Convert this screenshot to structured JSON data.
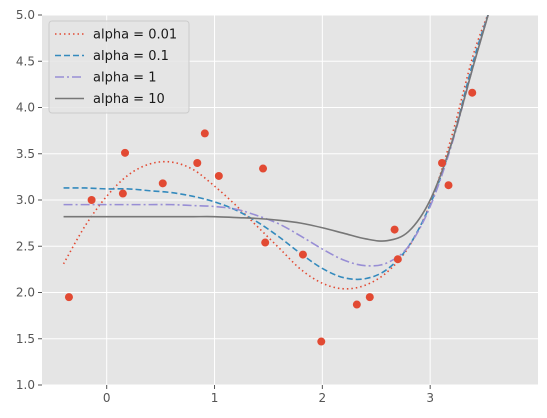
{
  "chart_data": {
    "type": "line",
    "title": "",
    "xlabel": "",
    "ylabel": "",
    "xlim": [
      -0.6,
      4.0
    ],
    "ylim": [
      1.0,
      5.0
    ],
    "xticks": [
      0,
      1,
      2,
      3
    ],
    "yticks": [
      1.0,
      1.5,
      2.0,
      2.5,
      3.0,
      3.5,
      4.0,
      4.5,
      5.0
    ],
    "xtick_labels": [
      "0",
      "1",
      "2",
      "3"
    ],
    "ytick_labels": [
      "1.0",
      "1.5",
      "2.0",
      "2.5",
      "3.0",
      "3.5",
      "4.0",
      "4.5",
      "5.0"
    ],
    "grid": true,
    "legend_position": "top-left",
    "colors": {
      "background": "#e5e5e5",
      "grid": "#ffffff",
      "points": "#e24a33"
    },
    "points": {
      "x": [
        -0.35,
        -0.14,
        0.15,
        0.17,
        0.52,
        0.84,
        0.91,
        1.04,
        1.45,
        1.47,
        1.82,
        1.99,
        2.32,
        2.44,
        2.67,
        2.7,
        3.11,
        3.17,
        3.39
      ],
      "y": [
        1.95,
        3.0,
        3.07,
        3.51,
        3.18,
        3.4,
        3.72,
        3.26,
        3.34,
        2.54,
        2.41,
        1.47,
        1.87,
        1.95,
        2.68,
        2.36,
        3.4,
        3.16,
        4.16
      ]
    },
    "series": [
      {
        "name": "alpha = 0.01",
        "color": "#e24a33",
        "dash": "dotted",
        "x": [
          -0.4,
          -0.2,
          0.0,
          0.2,
          0.4,
          0.6,
          0.8,
          1.0,
          1.2,
          1.4,
          1.6,
          1.8,
          2.0,
          2.2,
          2.4,
          2.6,
          2.8,
          3.0,
          3.2,
          3.4,
          3.55
        ],
        "y": [
          2.31,
          2.72,
          3.04,
          3.27,
          3.39,
          3.41,
          3.33,
          3.15,
          2.94,
          2.71,
          2.48,
          2.25,
          2.1,
          2.04,
          2.08,
          2.22,
          2.49,
          2.96,
          3.69,
          4.57,
          5.05
        ]
      },
      {
        "name": "alpha = 0.1",
        "color": "#348abd",
        "dash": "dashed",
        "x": [
          -0.4,
          -0.2,
          0.0,
          0.2,
          0.4,
          0.6,
          0.8,
          1.0,
          1.2,
          1.4,
          1.6,
          1.8,
          2.0,
          2.2,
          2.4,
          2.6,
          2.8,
          3.0,
          3.2,
          3.4,
          3.55
        ],
        "y": [
          3.13,
          3.13,
          3.12,
          3.12,
          3.1,
          3.08,
          3.04,
          2.98,
          2.89,
          2.76,
          2.6,
          2.42,
          2.26,
          2.16,
          2.15,
          2.25,
          2.5,
          2.95,
          3.62,
          4.5,
          5.05
        ]
      },
      {
        "name": "alpha = 1",
        "color": "#988ed5",
        "dash": "dashdot",
        "x": [
          -0.4,
          -0.2,
          0.0,
          0.2,
          0.4,
          0.6,
          0.8,
          1.0,
          1.2,
          1.4,
          1.6,
          1.8,
          2.0,
          2.2,
          2.4,
          2.6,
          2.8,
          3.0,
          3.2,
          3.4,
          3.55
        ],
        "y": [
          2.95,
          2.95,
          2.95,
          2.95,
          2.95,
          2.95,
          2.94,
          2.93,
          2.9,
          2.83,
          2.74,
          2.61,
          2.47,
          2.35,
          2.29,
          2.32,
          2.5,
          2.93,
          3.6,
          4.45,
          5.05
        ]
      },
      {
        "name": "alpha = 10",
        "color": "#777777",
        "dash": "solid",
        "x": [
          -0.4,
          -0.2,
          0.0,
          0.2,
          0.4,
          0.6,
          0.8,
          1.0,
          1.2,
          1.4,
          1.6,
          1.8,
          2.0,
          2.2,
          2.4,
          2.6,
          2.8,
          3.0,
          3.2,
          3.4,
          3.55
        ],
        "y": [
          2.82,
          2.82,
          2.82,
          2.82,
          2.82,
          2.82,
          2.82,
          2.82,
          2.81,
          2.8,
          2.78,
          2.75,
          2.7,
          2.64,
          2.58,
          2.56,
          2.66,
          3.0,
          3.62,
          4.45,
          5.05
        ]
      }
    ]
  }
}
